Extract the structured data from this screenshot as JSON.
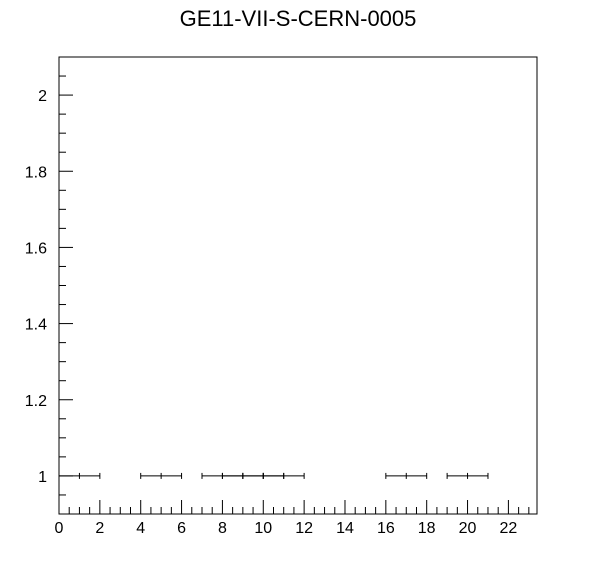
{
  "chart_data": {
    "type": "scatter",
    "title": "GE11-VII-S-CERN-0005",
    "xlabel": "",
    "ylabel": "",
    "xlim": [
      0,
      23.4
    ],
    "ylim": [
      0.9,
      2.1
    ],
    "x_ticks": [
      0,
      2,
      4,
      6,
      8,
      10,
      12,
      14,
      16,
      18,
      20,
      22
    ],
    "y_ticks": [
      1,
      1.2,
      1.4,
      1.6,
      1.8,
      2
    ],
    "x_minor_step": 0.5,
    "y_minor_step": 0.05,
    "grid": false,
    "legend": "none",
    "points": [
      {
        "x": 1,
        "y": 1,
        "x_err": 1
      },
      {
        "x": 5,
        "y": 1,
        "x_err": 1
      },
      {
        "x": 8,
        "y": 1,
        "x_err": 1
      },
      {
        "x": 9,
        "y": 1,
        "x_err": 1
      },
      {
        "x": 10,
        "y": 1,
        "x_err": 1
      },
      {
        "x": 11,
        "y": 1,
        "x_err": 1
      },
      {
        "x": 17,
        "y": 1,
        "x_err": 1
      },
      {
        "x": 20,
        "y": 1,
        "x_err": 1
      }
    ]
  }
}
